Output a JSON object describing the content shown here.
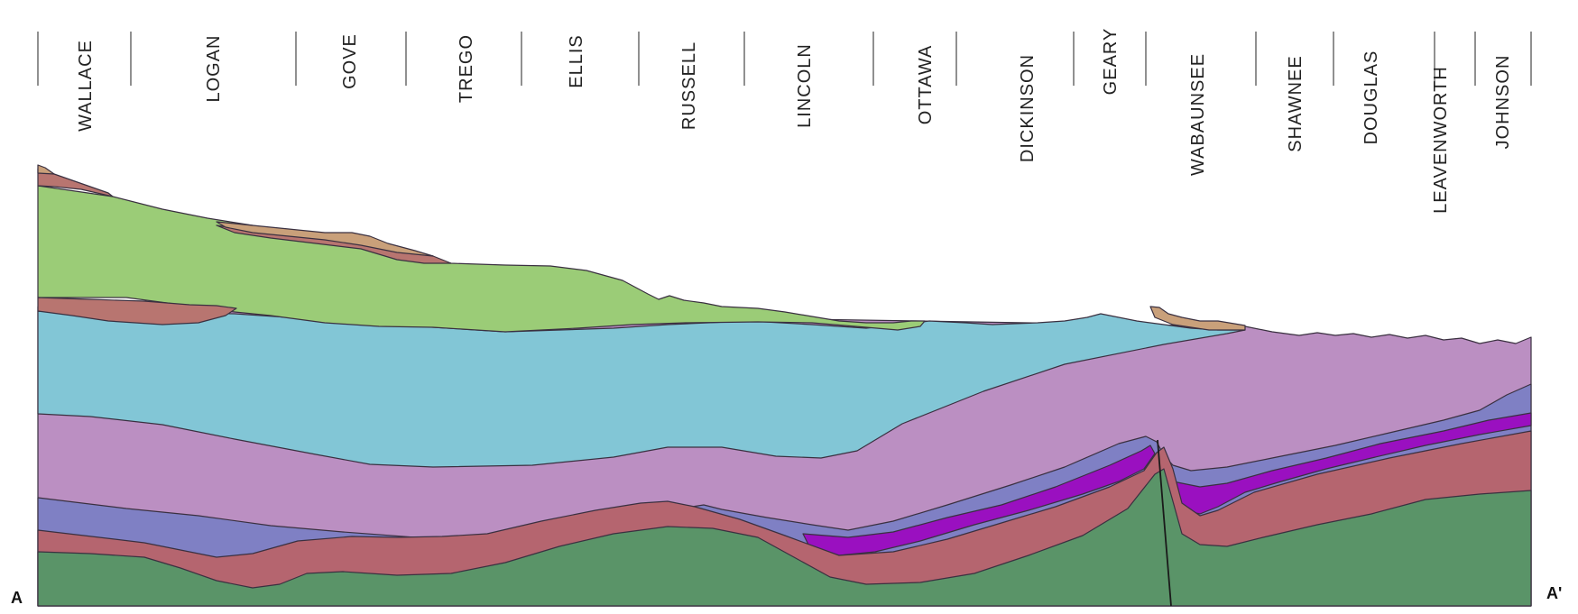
{
  "section": {
    "start_label": "A",
    "end_label": "A'",
    "counties": [
      "WALLACE",
      "LOGAN",
      "GOVE",
      "TREGO",
      "ELLIS",
      "RUSSELL",
      "LINCOLN",
      "OTTAWA",
      "DICKINSON",
      "GEARY",
      "WABAUNSEE",
      "SHAWNEE",
      "DOUGLAS",
      "LEAVENWORTH",
      "JOHNSON"
    ]
  },
  "colors": {
    "basement": "#5a9468",
    "lower_red": "#b5656f",
    "purple": "#9a10c0",
    "blue_violet": "#7f80c4",
    "lavender": "#bb8fc2",
    "cyan": "#82c6d6",
    "light_green": "#9bcc77",
    "thin_red": "#b87570",
    "tan": "#c9a07a",
    "outline": "#3a3040",
    "background": "#ffffff"
  }
}
